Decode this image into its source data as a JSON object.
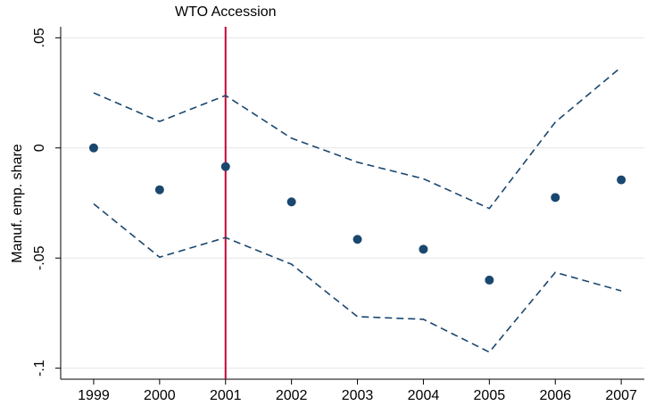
{
  "chart_data": {
    "type": "scatter",
    "ylabel": "Manuf. emp. share",
    "x": [
      1999,
      2000,
      2001,
      2002,
      2003,
      2004,
      2005,
      2006,
      2007
    ],
    "xlim": [
      1998.5,
      2007.35
    ],
    "xticks": [
      1999,
      2000,
      2001,
      2002,
      2003,
      2004,
      2005,
      2006,
      2007
    ],
    "ylim": [
      -0.105,
      0.055
    ],
    "yticks": [
      {
        "value": 0.05,
        "label": ".05"
      },
      0,
      {
        "value": -0.05,
        "label": "-.05"
      },
      {
        "value": -0.1,
        "label": "-.1"
      }
    ],
    "grid": true,
    "series": [
      {
        "color": "#1a476f",
        "style": "dots",
        "values": [
          0,
          -0.019,
          -0.0085,
          -0.0245,
          -0.0415,
          -0.046,
          -0.06,
          -0.0225,
          -0.0145
        ]
      },
      {
        "color": "#1a476f",
        "style": "dashed",
        "values": [
          0.025,
          0.012,
          0.0238,
          0.0044,
          -0.0065,
          -0.014,
          -0.0275,
          0.0117,
          0.0367
        ]
      },
      {
        "color": "#1a476f",
        "style": "dashed",
        "values": [
          -0.0254,
          -0.0496,
          -0.0407,
          -0.0528,
          -0.0766,
          -0.0778,
          -0.0927,
          -0.0565,
          -0.0649
        ]
      }
    ],
    "vline": {
      "x": 2001,
      "label": "WTO Accession",
      "color": "#c10534"
    }
  }
}
